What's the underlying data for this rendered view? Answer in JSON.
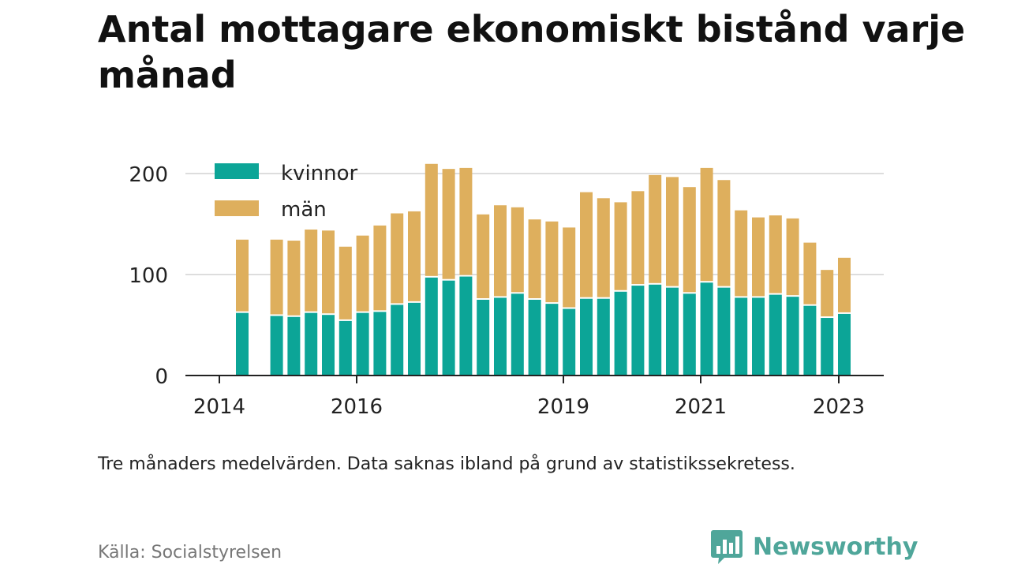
{
  "title": "Antal mottagare ekonomiskt bistånd varje månad",
  "note": "Tre månaders medelvärden. Data saknas ibland på grund av statistikssekretess.",
  "source": "Källa: Socialstyrelsen",
  "brand": {
    "name": "Newsworthy",
    "icon": "bar-chart-logo-icon"
  },
  "colors": {
    "kvinnor": "#0ca597",
    "man": "#deaf5d",
    "grid": "#dddddd",
    "axis": "#222222"
  },
  "chart_data": {
    "type": "bar",
    "stacked": true,
    "ylim": [
      0,
      210
    ],
    "yticks": [
      0,
      100,
      200
    ],
    "xticks": [
      "2014",
      "2016",
      "2019",
      "2021",
      "2023"
    ],
    "legend": {
      "placement": "top-left"
    },
    "series": [
      {
        "name": "kvinnor",
        "values": [
          62,
          null,
          59,
          58,
          62,
          60,
          54,
          62,
          63,
          70,
          72,
          97,
          94,
          98,
          75,
          77,
          81,
          75,
          71,
          66,
          76,
          76,
          83,
          89,
          90,
          87,
          81,
          92,
          87,
          77,
          77,
          80,
          78,
          69,
          57,
          61
        ]
      },
      {
        "name": "män",
        "values": [
          71,
          null,
          74,
          74,
          81,
          82,
          72,
          75,
          84,
          89,
          89,
          111,
          109,
          106,
          83,
          90,
          84,
          78,
          80,
          79,
          104,
          98,
          87,
          92,
          107,
          108,
          104,
          112,
          105,
          85,
          78,
          77,
          76,
          61,
          46,
          54
        ]
      }
    ]
  }
}
